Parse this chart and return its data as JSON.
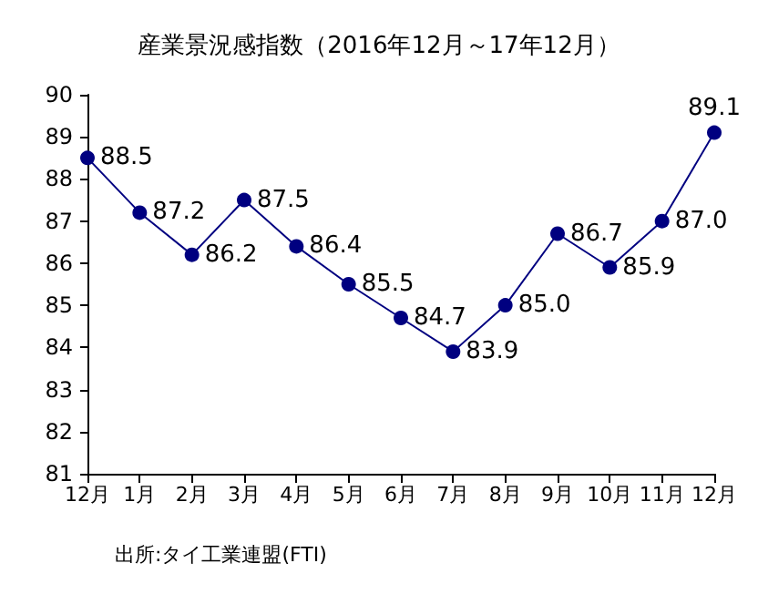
{
  "chart_data": {
    "type": "line",
    "title": "産業景況感指数（2016年12月～17年12月）",
    "categories": [
      "12月",
      "1月",
      "2月",
      "3月",
      "4月",
      "5月",
      "6月",
      "7月",
      "8月",
      "9月",
      "10月",
      "11月",
      "12月"
    ],
    "series": [
      {
        "color": "#000080",
        "values": [
          88.5,
          87.2,
          86.2,
          87.5,
          86.4,
          85.5,
          84.7,
          83.9,
          85.0,
          86.7,
          85.9,
          87.0,
          89.1
        ],
        "value_labels": [
          "88.5",
          "87.2",
          "86.2",
          "87.5",
          "86.4",
          "85.5",
          "84.7",
          "83.9",
          "85.0",
          "86.7",
          "85.9",
          "87.0",
          "89.1"
        ]
      }
    ],
    "ylim": [
      81,
      90
    ],
    "yticks": [
      81,
      82,
      83,
      84,
      85,
      86,
      87,
      88,
      89,
      90
    ],
    "grid": false,
    "marker": "circle",
    "line_style": "solid",
    "annotations": [
      "出所:タイ工業連盟(FTI)"
    ]
  }
}
